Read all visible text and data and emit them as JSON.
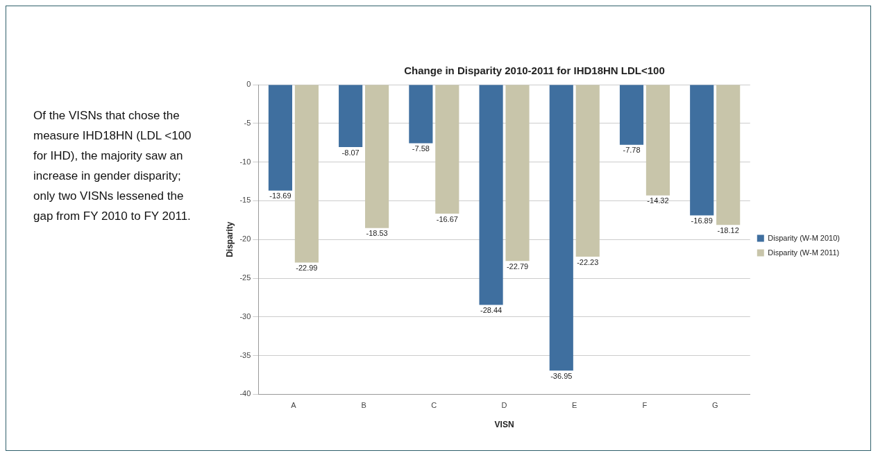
{
  "chart_data": {
    "type": "bar",
    "title": "Change in Disparity 2010-2011 for IHD18HN LDL<100",
    "xlabel": "VISN",
    "ylabel": "Disparity",
    "annotations": [
      "Of the VISNs that chose the measure IHD18HN (LDL <100 for IHD), the majority saw an increase in gender disparity; only two VISNs lessened the gap from FY 2010 to FY 2011."
    ],
    "categories": [
      "A",
      "B",
      "C",
      "D",
      "E",
      "F",
      "G"
    ],
    "series": [
      {
        "name": "Disparity (W-M 2010)",
        "color": "#3f6f9f",
        "values": [
          -13.69,
          -8.07,
          -7.58,
          -28.44,
          -36.95,
          -7.78,
          -16.89
        ]
      },
      {
        "name": "Disparity (W-M 2011)",
        "color": "#c8c5aa",
        "values": [
          -22.99,
          -18.53,
          -16.67,
          -22.79,
          -22.23,
          -14.32,
          -18.12
        ]
      }
    ],
    "ylim": [
      -40,
      0
    ],
    "yticks": [
      -40,
      -35,
      -30,
      -25,
      -20,
      -15,
      -10,
      -5,
      0
    ],
    "grid": "y",
    "legend": "right",
    "data_labels": true
  }
}
